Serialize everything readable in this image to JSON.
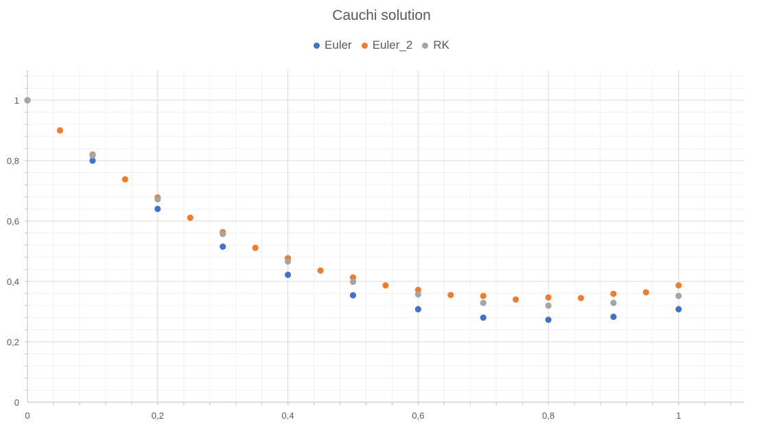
{
  "chart_data": {
    "type": "scatter",
    "title": "Cauchi solution",
    "xlabel": "",
    "ylabel": "",
    "xlim": [
      0,
      1.1
    ],
    "ylim": [
      0,
      1.1
    ],
    "x_ticks": [
      {
        "value": 0,
        "label": "0"
      },
      {
        "value": 0.2,
        "label": "0,2"
      },
      {
        "value": 0.4,
        "label": "0,4"
      },
      {
        "value": 0.6,
        "label": "0,6"
      },
      {
        "value": 0.8,
        "label": "0,8"
      },
      {
        "value": 1.0,
        "label": "1"
      }
    ],
    "y_ticks": [
      {
        "value": 0,
        "label": "0"
      },
      {
        "value": 0.2,
        "label": "0,2"
      },
      {
        "value": 0.4,
        "label": "0,4"
      },
      {
        "value": 0.6,
        "label": "0,6"
      },
      {
        "value": 0.8,
        "label": "0,8"
      },
      {
        "value": 1.0,
        "label": "1"
      }
    ],
    "grid": true,
    "minor_grid": true,
    "legend_position": "top",
    "series": [
      {
        "name": "Euler",
        "color": "#4472c4",
        "points": [
          {
            "x": 0,
            "y": 1.0
          },
          {
            "x": 0.1,
            "y": 0.8
          },
          {
            "x": 0.2,
            "y": 0.64
          },
          {
            "x": 0.3,
            "y": 0.515
          },
          {
            "x": 0.4,
            "y": 0.422
          },
          {
            "x": 0.5,
            "y": 0.354
          },
          {
            "x": 0.6,
            "y": 0.308
          },
          {
            "x": 0.7,
            "y": 0.28
          },
          {
            "x": 0.8,
            "y": 0.273
          },
          {
            "x": 0.9,
            "y": 0.283
          },
          {
            "x": 1.0,
            "y": 0.308
          }
        ]
      },
      {
        "name": "Euler_2",
        "color": "#ed7d31",
        "points": [
          {
            "x": 0,
            "y": 1.0
          },
          {
            "x": 0.05,
            "y": 0.9
          },
          {
            "x": 0.1,
            "y": 0.82
          },
          {
            "x": 0.15,
            "y": 0.738
          },
          {
            "x": 0.2,
            "y": 0.678
          },
          {
            "x": 0.25,
            "y": 0.611
          },
          {
            "x": 0.3,
            "y": 0.563
          },
          {
            "x": 0.35,
            "y": 0.511
          },
          {
            "x": 0.4,
            "y": 0.477
          },
          {
            "x": 0.45,
            "y": 0.436
          },
          {
            "x": 0.5,
            "y": 0.413
          },
          {
            "x": 0.55,
            "y": 0.387
          },
          {
            "x": 0.6,
            "y": 0.372
          },
          {
            "x": 0.65,
            "y": 0.355
          },
          {
            "x": 0.7,
            "y": 0.352
          },
          {
            "x": 0.75,
            "y": 0.34
          },
          {
            "x": 0.8,
            "y": 0.347
          },
          {
            "x": 0.85,
            "y": 0.345
          },
          {
            "x": 0.9,
            "y": 0.359
          },
          {
            "x": 0.95,
            "y": 0.364
          },
          {
            "x": 1.0,
            "y": 0.387
          }
        ]
      },
      {
        "name": "RK",
        "color": "#a5a5a5",
        "points": [
          {
            "x": 0,
            "y": 1.0
          },
          {
            "x": 0.1,
            "y": 0.817
          },
          {
            "x": 0.2,
            "y": 0.672
          },
          {
            "x": 0.3,
            "y": 0.557
          },
          {
            "x": 0.4,
            "y": 0.466
          },
          {
            "x": 0.5,
            "y": 0.399
          },
          {
            "x": 0.6,
            "y": 0.357
          },
          {
            "x": 0.7,
            "y": 0.329
          },
          {
            "x": 0.8,
            "y": 0.32
          },
          {
            "x": 0.9,
            "y": 0.329
          },
          {
            "x": 1.0,
            "y": 0.352
          }
        ]
      }
    ]
  }
}
